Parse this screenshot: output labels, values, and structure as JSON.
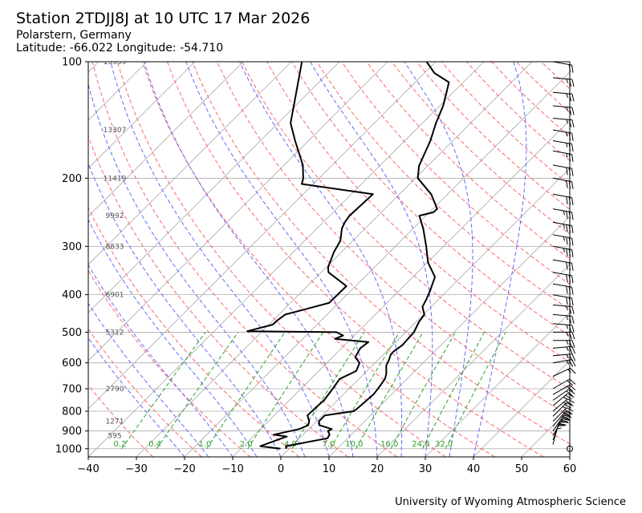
{
  "header": {
    "title": "Station 2TDJJ8J at 10 UTC 17 Mar 2026",
    "location": "Polarstern, Germany",
    "coords": "Latitude: -66.022 Longitude: -54.710"
  },
  "footer": {
    "credit": "University of Wyoming Atmospheric Science"
  },
  "colors": {
    "dry_adiabat": "#ff6666",
    "moist_adiabat": "#6666ff",
    "mixing_ratio": "#2ca02c",
    "isotherm": "#aaaaaa",
    "sounding": "#000000"
  },
  "chart_data": {
    "type": "skew-t",
    "x_unit": "degC",
    "y_unit": "hPa",
    "xlim": [
      -40,
      60
    ],
    "ylim": [
      1050,
      100
    ],
    "y_scale": "log",
    "grid": true,
    "x_ticks": [
      -40,
      -30,
      -20,
      -10,
      0,
      10,
      20,
      30,
      40,
      50,
      60
    ],
    "y_ticks": [
      100,
      200,
      300,
      400,
      500,
      600,
      700,
      800,
      900,
      1000
    ],
    "height_labels": [
      {
        "p": 100,
        "label": "15959"
      },
      {
        "p": 150,
        "label": "13307"
      },
      {
        "p": 200,
        "label": "11419"
      },
      {
        "p": 250,
        "label": "9992"
      },
      {
        "p": 300,
        "label": "8833"
      },
      {
        "p": 400,
        "label": "6901"
      },
      {
        "p": 500,
        "label": "5312"
      },
      {
        "p": 700,
        "label": "2790"
      },
      {
        "p": 850,
        "label": "1271"
      },
      {
        "p": 925,
        "label": "595"
      }
    ],
    "mixing_ratio_labels": [
      "0.2",
      "0.4",
      "1.0",
      "2.0",
      "4.0",
      "7.0",
      "10.0",
      "16.0",
      "24.0",
      "32.0"
    ],
    "series": [
      {
        "name": "temperature",
        "points": [
          [
            -0.6,
            1000
          ],
          [
            -1.2,
            985
          ],
          [
            5.8,
            940
          ],
          [
            5.5,
            920
          ],
          [
            4.4,
            900
          ],
          [
            4.8,
            890
          ],
          [
            1.5,
            870
          ],
          [
            0.5,
            850
          ],
          [
            0.5,
            820
          ],
          [
            5.6,
            800
          ],
          [
            5.8,
            790
          ],
          [
            6.2,
            730
          ],
          [
            6.2,
            720
          ],
          [
            6.0,
            700
          ],
          [
            5.7,
            680
          ],
          [
            5.4,
            660
          ],
          [
            4.6,
            640
          ],
          [
            2.9,
            610
          ],
          [
            2.3,
            590
          ],
          [
            1.5,
            570
          ],
          [
            1.5,
            560
          ],
          [
            2.0,
            540
          ],
          [
            1.7,
            500
          ],
          [
            0.6,
            470
          ],
          [
            0.2,
            450
          ],
          [
            -1.8,
            430
          ],
          [
            -2.6,
            410
          ],
          [
            -3.6,
            390
          ],
          [
            -5.4,
            360
          ],
          [
            -9.9,
            330
          ],
          [
            -13.6,
            300
          ],
          [
            -17.9,
            270
          ],
          [
            -21.4,
            250
          ],
          [
            -19.2,
            245
          ],
          [
            -19.1,
            240
          ],
          [
            -23.4,
            220
          ],
          [
            -29.5,
            200
          ],
          [
            -31.8,
            186
          ],
          [
            -34.7,
            160
          ],
          [
            -37.2,
            144
          ],
          [
            -39.3,
            130
          ],
          [
            -41.4,
            120
          ],
          [
            -43.0,
            113
          ],
          [
            -47.9,
            107
          ],
          [
            -51.9,
            100
          ]
        ]
      },
      {
        "name": "dewpoint",
        "points": [
          [
            -1.8,
            1000
          ],
          [
            -6.5,
            985
          ],
          [
            -3.0,
            930
          ],
          [
            -6.1,
            920
          ],
          [
            -2.0,
            890
          ],
          [
            -0.9,
            870
          ],
          [
            -1.5,
            850
          ],
          [
            -3.1,
            820
          ],
          [
            -3.0,
            780
          ],
          [
            -2.8,
            750
          ],
          [
            -3.4,
            700
          ],
          [
            -4.0,
            660
          ],
          [
            -2.2,
            630
          ],
          [
            -3.2,
            600
          ],
          [
            -5.3,
            580
          ],
          [
            -6.1,
            550
          ],
          [
            -5.7,
            530
          ],
          [
            -13.3,
            520
          ],
          [
            -12.3,
            510
          ],
          [
            -14.4,
            500
          ],
          [
            -33.1,
            497
          ],
          [
            -29.2,
            478
          ],
          [
            -29.1,
            465
          ],
          [
            -28.7,
            450
          ],
          [
            -22.0,
            420
          ],
          [
            -21.9,
            380
          ],
          [
            -28.5,
            350
          ],
          [
            -29.6,
            340
          ],
          [
            -31.6,
            310
          ],
          [
            -32.6,
            290
          ],
          [
            -34.8,
            270
          ],
          [
            -35.5,
            260
          ],
          [
            -35.9,
            250
          ],
          [
            -35.5,
            220
          ],
          [
            -52.4,
            207
          ],
          [
            -53.3,
            200
          ],
          [
            -56.1,
            185
          ],
          [
            -62.8,
            160
          ],
          [
            -67.4,
            144
          ],
          [
            -72.6,
            120
          ],
          [
            -77.8,
            100
          ]
        ]
      }
    ],
    "wind_barbs": [
      {
        "p": 1000,
        "speed_kt": 0,
        "direction_deg": 0
      },
      {
        "p": 975,
        "speed_kt": 15,
        "direction_deg": 195
      },
      {
        "p": 950,
        "speed_kt": 20,
        "direction_deg": 200
      },
      {
        "p": 925,
        "speed_kt": 25,
        "direction_deg": 210
      },
      {
        "p": 900,
        "speed_kt": 30,
        "direction_deg": 215
      },
      {
        "p": 875,
        "speed_kt": 30,
        "direction_deg": 220
      },
      {
        "p": 850,
        "speed_kt": 30,
        "direction_deg": 225
      },
      {
        "p": 825,
        "speed_kt": 25,
        "direction_deg": 225
      },
      {
        "p": 800,
        "speed_kt": 25,
        "direction_deg": 230
      },
      {
        "p": 775,
        "speed_kt": 25,
        "direction_deg": 230
      },
      {
        "p": 750,
        "speed_kt": 20,
        "direction_deg": 235
      },
      {
        "p": 725,
        "speed_kt": 20,
        "direction_deg": 240
      },
      {
        "p": 700,
        "speed_kt": 20,
        "direction_deg": 240
      },
      {
        "p": 650,
        "speed_kt": 15,
        "direction_deg": 245
      },
      {
        "p": 600,
        "speed_kt": 25,
        "direction_deg": 260
      },
      {
        "p": 575,
        "speed_kt": 25,
        "direction_deg": 265
      },
      {
        "p": 550,
        "speed_kt": 25,
        "direction_deg": 265
      },
      {
        "p": 525,
        "speed_kt": 25,
        "direction_deg": 270
      },
      {
        "p": 500,
        "speed_kt": 25,
        "direction_deg": 270
      },
      {
        "p": 475,
        "speed_kt": 25,
        "direction_deg": 275
      },
      {
        "p": 450,
        "speed_kt": 25,
        "direction_deg": 275
      },
      {
        "p": 425,
        "speed_kt": 25,
        "direction_deg": 275
      },
      {
        "p": 400,
        "speed_kt": 30,
        "direction_deg": 280
      },
      {
        "p": 375,
        "speed_kt": 30,
        "direction_deg": 280
      },
      {
        "p": 350,
        "speed_kt": 30,
        "direction_deg": 280
      },
      {
        "p": 325,
        "speed_kt": 30,
        "direction_deg": 280
      },
      {
        "p": 300,
        "speed_kt": 35,
        "direction_deg": 280
      },
      {
        "p": 280,
        "speed_kt": 35,
        "direction_deg": 280
      },
      {
        "p": 260,
        "speed_kt": 35,
        "direction_deg": 280
      },
      {
        "p": 240,
        "speed_kt": 35,
        "direction_deg": 280
      },
      {
        "p": 220,
        "speed_kt": 30,
        "direction_deg": 280
      },
      {
        "p": 200,
        "speed_kt": 30,
        "direction_deg": 280
      },
      {
        "p": 185,
        "speed_kt": 30,
        "direction_deg": 280
      },
      {
        "p": 170,
        "speed_kt": 25,
        "direction_deg": 280
      },
      {
        "p": 160,
        "speed_kt": 25,
        "direction_deg": 280
      },
      {
        "p": 150,
        "speed_kt": 25,
        "direction_deg": 280
      },
      {
        "p": 140,
        "speed_kt": 25,
        "direction_deg": 275
      },
      {
        "p": 130,
        "speed_kt": 25,
        "direction_deg": 275
      },
      {
        "p": 120,
        "speed_kt": 25,
        "direction_deg": 275
      },
      {
        "p": 110,
        "speed_kt": 25,
        "direction_deg": 275
      },
      {
        "p": 100,
        "speed_kt": 20,
        "direction_deg": 280
      }
    ]
  }
}
